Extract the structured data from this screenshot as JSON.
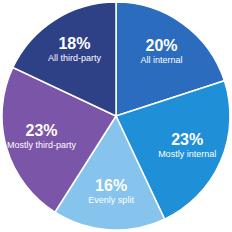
{
  "chart_data": {
    "type": "pie",
    "categories": [
      "All internal",
      "Mostly internal",
      "Evenly split",
      "Mostly third-party",
      "All third-party"
    ],
    "values": [
      20,
      23,
      16,
      23,
      18
    ],
    "value_labels": [
      "20%",
      "23%",
      "16%",
      "23%",
      "18%"
    ],
    "colors": [
      "#2b6cbf",
      "#1f8fd8",
      "#86c4ee",
      "#7b55a8",
      "#2e4086"
    ],
    "data_labels": true
  }
}
